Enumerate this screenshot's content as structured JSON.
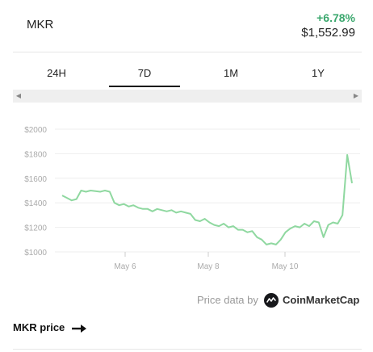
{
  "header": {
    "symbol": "MKR",
    "change": "+6.78%",
    "price": "$1,552.99",
    "change_color": "#3aa76d"
  },
  "tabs": [
    {
      "label": "24H",
      "active": false
    },
    {
      "label": "7D",
      "active": true
    },
    {
      "label": "1M",
      "active": false
    },
    {
      "label": "1Y",
      "active": false
    }
  ],
  "chart_data": {
    "type": "line",
    "title": "",
    "xlabel": "",
    "ylabel": "",
    "line_color": "#8fd8a0",
    "x_tick_labels": [
      "May 6",
      "May 8",
      "May 10"
    ],
    "y_tick_labels": [
      "$2000",
      "$1800",
      "$1600",
      "$1400",
      "$1200",
      "$1000"
    ],
    "y_ticks": [
      2000,
      1800,
      1600,
      1400,
      1200,
      1000
    ],
    "ylim": [
      1000,
      2000
    ],
    "grid": true,
    "series": [
      {
        "values": [
          1460,
          1440,
          1420,
          1430,
          1500,
          1490,
          1500,
          1495,
          1490,
          1500,
          1490,
          1400,
          1380,
          1390,
          1370,
          1380,
          1360,
          1350,
          1350,
          1330,
          1350,
          1340,
          1330,
          1340,
          1320,
          1330,
          1320,
          1310,
          1260,
          1250,
          1270,
          1240,
          1220,
          1210,
          1230,
          1200,
          1210,
          1180,
          1180,
          1160,
          1170,
          1120,
          1100,
          1060,
          1070,
          1060,
          1100,
          1160,
          1190,
          1210,
          1200,
          1230,
          1210,
          1250,
          1240,
          1120,
          1220,
          1240,
          1230,
          1300,
          1790,
          1560
        ]
      }
    ]
  },
  "attribution": {
    "label": "Price data by",
    "provider": "CoinMarketCap",
    "logo_icon": "coinmarketcap-logo-icon"
  },
  "link": {
    "label": "MKR price",
    "icon": "arrow-right-icon"
  }
}
